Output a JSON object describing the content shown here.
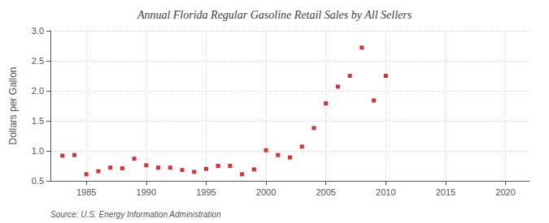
{
  "chart_data": {
    "type": "scatter",
    "title": "Annual Florida Regular Gasoline Retail Sales by All Sellers",
    "ylabel": "Dollars per Gallon",
    "annotation": "Source: U.S. Energy Information Administration",
    "x": [
      1983,
      1984,
      1985,
      1986,
      1987,
      1988,
      1989,
      1990,
      1991,
      1992,
      1993,
      1994,
      1995,
      1996,
      1997,
      1998,
      1999,
      2000,
      2001,
      2002,
      2003,
      2004,
      2005,
      2006,
      2007,
      2008,
      2009,
      2010
    ],
    "values": [
      0.92,
      0.93,
      0.61,
      0.66,
      0.72,
      0.71,
      0.87,
      0.76,
      0.72,
      0.72,
      0.68,
      0.65,
      0.7,
      0.75,
      0.75,
      0.61,
      0.69,
      1.01,
      0.93,
      0.89,
      1.07,
      1.38,
      1.79,
      2.07,
      2.25,
      2.72,
      1.84,
      2.25
    ],
    "color": "#cc0000",
    "marker": "square",
    "xlim": [
      1982,
      2022
    ],
    "ylim": [
      0.5,
      3.0
    ],
    "xticks": [
      1985,
      1990,
      1995,
      2000,
      2005,
      2010,
      2015,
      2020
    ],
    "yticks": [
      0.5,
      {
        "value": 1.0,
        "label": "1.0"
      },
      1.5,
      {
        "value": 2.0,
        "label": "2.0"
      },
      2.5,
      {
        "value": 3.0,
        "label": "3.0"
      }
    ],
    "grid": true
  }
}
